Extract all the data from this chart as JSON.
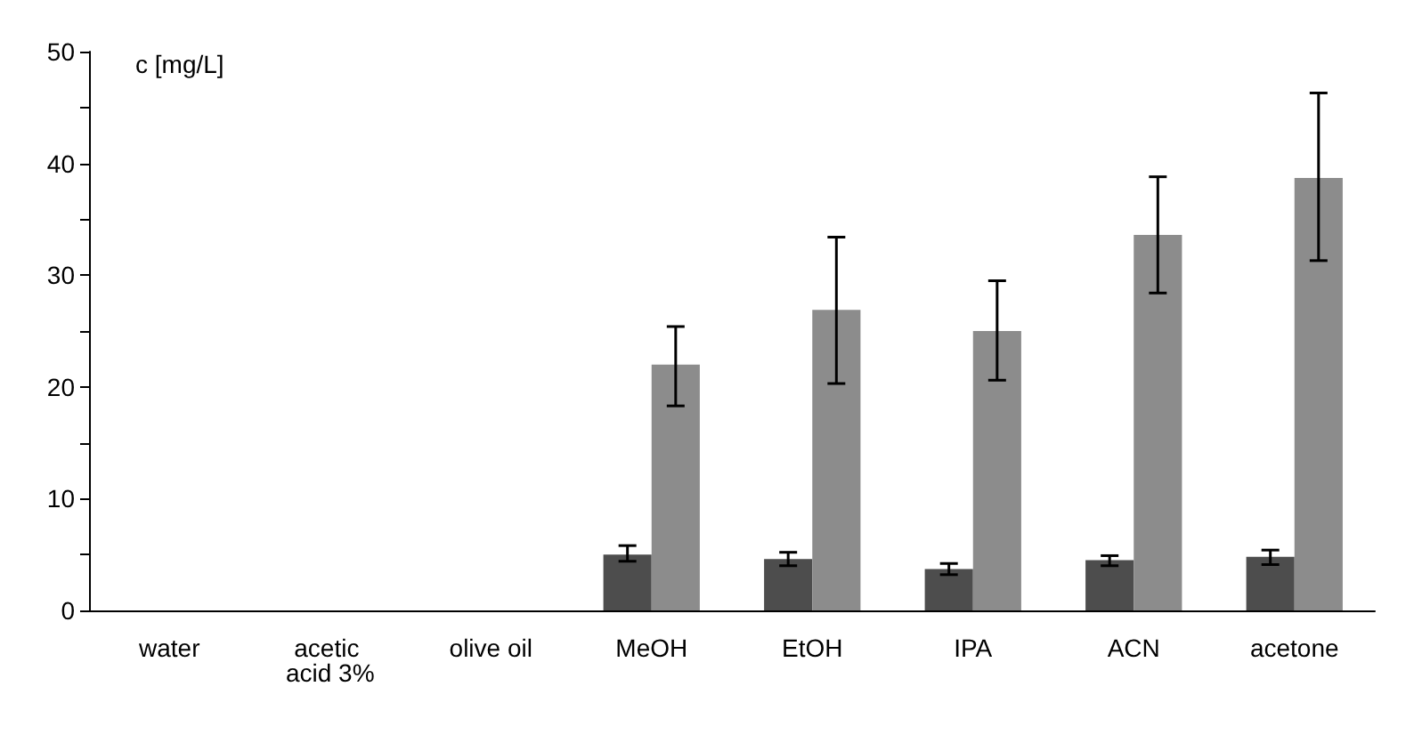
{
  "chart_data": {
    "type": "bar",
    "ylabel": "c [mg/L]",
    "categories": [
      "water",
      "acetic acid 3%",
      "olive oil",
      "MeOH",
      "EtOH",
      "IPA",
      "ACN",
      "acetone"
    ],
    "series": [
      {
        "color": "#4d4d4d",
        "values": [
          null,
          null,
          null,
          5.0,
          4.6,
          3.7,
          4.5,
          4.8
        ],
        "errors": [
          null,
          null,
          null,
          [
            4.4,
            5.8
          ],
          [
            4.0,
            5.2
          ],
          [
            3.2,
            4.2
          ],
          [
            4.0,
            4.9
          ],
          [
            4.1,
            5.4
          ]
        ]
      },
      {
        "color": "#8c8c8c",
        "values": [
          null,
          null,
          null,
          22.0,
          26.9,
          25.0,
          33.6,
          38.7
        ],
        "errors": [
          null,
          null,
          null,
          [
            18.3,
            25.4
          ],
          [
            20.3,
            33.4
          ],
          [
            20.6,
            29.5
          ],
          [
            28.4,
            38.8
          ],
          [
            31.3,
            46.3
          ]
        ]
      }
    ],
    "ylim": [
      0,
      50
    ],
    "yticks": [
      0,
      {
        "value": 5,
        "label": null
      },
      10,
      {
        "value": 15,
        "label": null
      },
      20,
      {
        "value": 25,
        "label": null
      },
      30,
      {
        "value": 35,
        "label": null
      },
      40,
      {
        "value": 45,
        "label": null
      },
      50
    ],
    "grid": false
  }
}
